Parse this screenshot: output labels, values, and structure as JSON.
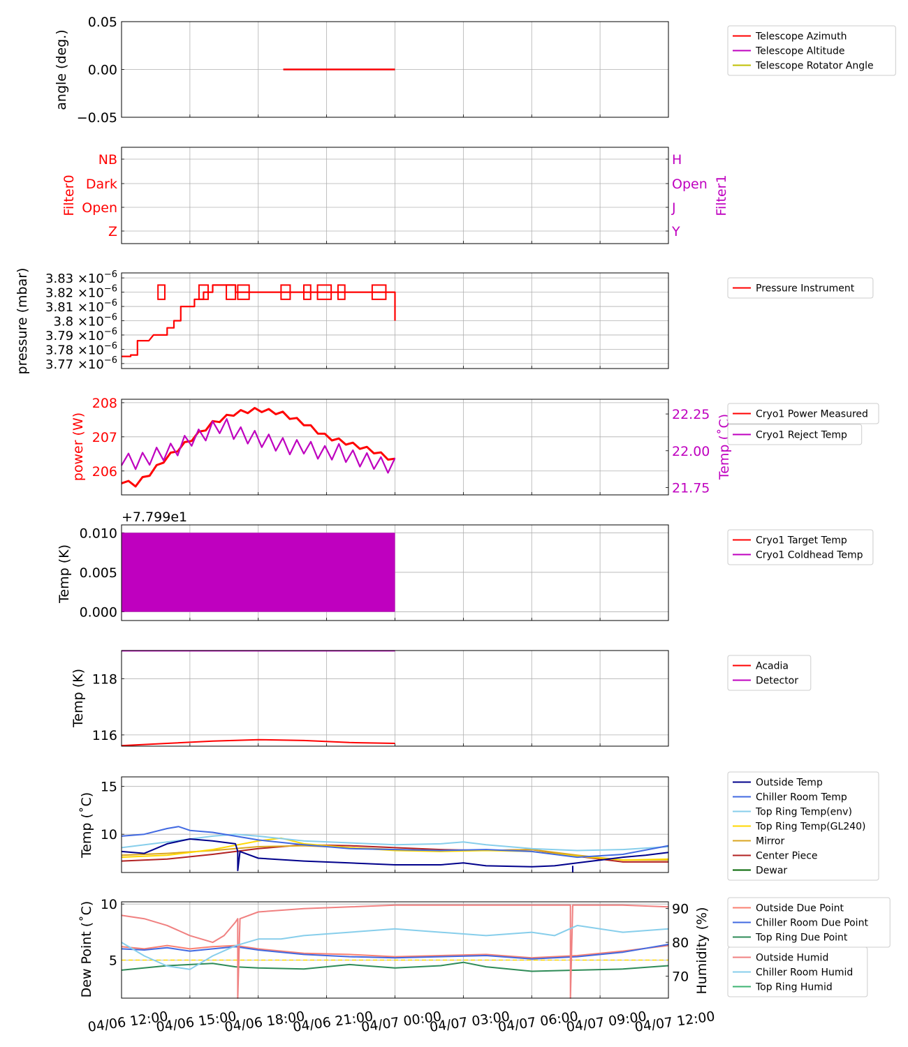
{
  "x_time_ticks": [
    "04/06 12:00",
    "04/06 15:00",
    "04/06 18:00",
    "04/06 21:00",
    "04/07 00:00",
    "04/07 03:00",
    "04/07 06:00",
    "04/07 09:00",
    "04/07 12:00"
  ],
  "chart_data": [
    {
      "type": "line",
      "ylabel": "angle (deg.)",
      "ylim": [
        -0.05,
        0.05
      ],
      "yticks": [
        "0.05",
        "0.00",
        "−0.05"
      ],
      "x_range_hours": [
        0,
        24
      ],
      "series": [
        {
          "name": "Telescope Azimuth",
          "color": "#ff0000",
          "x": [
            7.1,
            12.0
          ],
          "values": [
            0,
            0
          ]
        },
        {
          "name": "Telescope Altitude",
          "color": "#bf00bf",
          "x": [
            7.1,
            12.0
          ],
          "values": [
            0,
            0
          ]
        },
        {
          "name": "Telescope Rotator Angle",
          "color": "#bfbf00",
          "x": [
            7.1,
            12.0
          ],
          "values": [
            0,
            0
          ]
        }
      ],
      "legend": "right"
    },
    {
      "type": "line",
      "ylabel_left": "Filter0",
      "ylabel_right": "Filter1",
      "left_ticks": [
        "NB",
        "Dark",
        "Open",
        "Z"
      ],
      "right_ticks": [
        "H",
        "Open",
        "J",
        "Y"
      ],
      "colors": {
        "left": "#ff0000",
        "right": "#bf00bf"
      }
    },
    {
      "type": "line",
      "ylabel": "pressure (mbar)",
      "yticks_mantissa": [
        "3.83",
        "3.82",
        "3.81",
        "3.8",
        "3.79",
        "3.78",
        "3.77"
      ],
      "ytick_unit": "×10",
      "ytick_exp": "−6",
      "ylim": [
        3.7665e-06,
        3.8335e-06
      ],
      "series": [
        {
          "name": "Pressure Instrument",
          "color": "#ff0000",
          "x": [
            0,
            0.4,
            0.4,
            0.7,
            0.7,
            1.2,
            1.2,
            1.4,
            1.4,
            2.0,
            2.0,
            2.3,
            2.3,
            2.6,
            2.6,
            3.2,
            3.2,
            3.6,
            3.6,
            4.0,
            4.0,
            5.0,
            5.0,
            12.0,
            12.0
          ],
          "values": [
            3.775e-06,
            3.775e-06,
            3.776e-06,
            3.776e-06,
            3.786e-06,
            3.786e-06,
            3.786e-06,
            3.79e-06,
            3.79e-06,
            3.79e-06,
            3.795e-06,
            3.795e-06,
            3.8e-06,
            3.8e-06,
            3.81e-06,
            3.81e-06,
            3.815e-06,
            3.815e-06,
            3.82e-06,
            3.82e-06,
            3.825e-06,
            3.825e-06,
            3.82e-06,
            3.82e-06,
            3.8e-06
          ]
        }
      ],
      "legend": "right"
    },
    {
      "type": "line",
      "ylabel_left": "power (W)",
      "ylabel_right": "Temp (˚C)",
      "yticks_left": [
        "208",
        "207",
        "206"
      ],
      "yticks_right": [
        "22.25",
        "22.00",
        "21.75"
      ],
      "ylim_left": [
        205.3,
        208.1
      ],
      "ylim_right": [
        21.7,
        22.35
      ],
      "series": [
        {
          "name": "Cryo1 Power Measured",
          "color": "#ff0000",
          "axis": "left",
          "x": [
            0,
            0.6,
            1.2,
            2.0,
            3.0,
            4.0,
            5.0,
            6.0,
            7.0,
            8.0,
            9.0,
            10.0,
            11.0,
            12.0
          ],
          "values": [
            205.7,
            205.6,
            205.9,
            206.4,
            206.9,
            207.4,
            207.7,
            207.8,
            207.7,
            207.4,
            207.0,
            206.8,
            206.6,
            206.3
          ]
        },
        {
          "name": "Cryo1 Reject Temp",
          "color": "#bf00bf",
          "axis": "right",
          "x": [
            0,
            0.5,
            1.0,
            1.5,
            2.0,
            2.5,
            3.0,
            3.5,
            4.0,
            4.5,
            5.0,
            5.5,
            6.0,
            6.5,
            7.0,
            7.5,
            8.0,
            8.5,
            9.0,
            9.5,
            10.0,
            10.5,
            11.0,
            11.5,
            12.0
          ],
          "values": [
            21.95,
            21.92,
            21.94,
            21.97,
            21.99,
            22.02,
            22.08,
            22.1,
            22.15,
            22.18,
            22.12,
            22.1,
            22.08,
            22.06,
            22.04,
            22.02,
            22.03,
            22.0,
            21.98,
            22.0,
            21.96,
            21.94,
            21.93,
            21.9,
            21.9
          ]
        }
      ],
      "legend": "right"
    },
    {
      "type": "area",
      "ylabel": "Temp (K)",
      "offset_label": "+7.799e1",
      "yticks": [
        "0.010",
        "0.005",
        "0.000"
      ],
      "ylim": [
        -0.0011,
        0.011
      ],
      "series": [
        {
          "name": "Cryo1 Target Temp",
          "color": "#ff0000",
          "x": [
            0,
            12
          ],
          "values": [
            0,
            0
          ]
        },
        {
          "name": "Cryo1 Coldhead Temp",
          "color": "#bf00bf",
          "x": [
            0,
            12
          ],
          "values_low": [
            0,
            0
          ],
          "values_high": [
            0.01,
            0.01
          ]
        }
      ],
      "legend": "right"
    },
    {
      "type": "line",
      "ylabel": "Temp (K)",
      "yticks": [
        "118",
        "116"
      ],
      "ylim": [
        115.6,
        119.0
      ],
      "series": [
        {
          "name": "Acadia",
          "color": "#ff0000",
          "x": [
            0,
            2,
            4,
            6,
            8,
            10,
            12
          ],
          "values": [
            115.62,
            115.7,
            115.78,
            115.83,
            115.8,
            115.73,
            115.7
          ]
        },
        {
          "name": "Detector",
          "color": "#bf00bf",
          "x": [
            0,
            12
          ],
          "values": [
            118.99,
            118.99
          ]
        }
      ],
      "legend": "right"
    },
    {
      "type": "line",
      "ylabel": "Temp (˚C)",
      "yticks": [
        "15",
        "10"
      ],
      "ylim": [
        6.0,
        16.0
      ],
      "series": [
        {
          "name": "Outside Temp",
          "color": "#00008b",
          "x": [
            0,
            1,
            2,
            3,
            4,
            5,
            5.1,
            5.1,
            5.2,
            6,
            8,
            10,
            12,
            14,
            15,
            16,
            18,
            19,
            20,
            21,
            22,
            23,
            24
          ],
          "values": [
            8.2,
            8.0,
            9.0,
            9.5,
            9.3,
            9.0,
            8.2,
            6.2,
            8.2,
            7.5,
            7.2,
            7.0,
            6.8,
            6.8,
            7.0,
            6.7,
            6.6,
            6.7,
            7.0,
            7.3,
            7.6,
            7.8,
            8.1
          ]
        },
        {
          "name": "Chiller Room Temp",
          "color": "#4169e1",
          "x": [
            0,
            1,
            2,
            2.5,
            3,
            4,
            5,
            6,
            8,
            10,
            12,
            14,
            16,
            18,
            20,
            22,
            24
          ],
          "values": [
            9.8,
            10.0,
            10.6,
            10.8,
            10.4,
            10.2,
            9.8,
            9.4,
            8.9,
            8.5,
            8.4,
            8.3,
            8.4,
            8.2,
            7.6,
            7.9,
            8.8
          ]
        },
        {
          "name": "Top Ring Temp(env)",
          "color": "#87ceeb",
          "x": [
            0,
            2,
            4,
            5,
            6,
            8,
            10,
            12,
            14,
            15,
            16,
            18,
            20,
            22,
            24
          ],
          "values": [
            8.6,
            9.2,
            9.8,
            10.0,
            9.8,
            9.3,
            9.1,
            8.9,
            9.0,
            9.2,
            8.9,
            8.5,
            8.3,
            8.4,
            8.7
          ]
        },
        {
          "name": "Top Ring Temp(GL240)",
          "color": "#ffd700",
          "x": [
            0,
            2,
            4,
            6,
            7,
            8,
            10,
            12,
            14,
            16,
            18,
            20,
            22,
            24
          ],
          "values": [
            7.6,
            7.8,
            8.4,
            9.3,
            9.6,
            9.0,
            8.6,
            8.3,
            8.2,
            8.3,
            8.2,
            7.7,
            7.3,
            7.4
          ]
        },
        {
          "name": "Mirror",
          "color": "#daa520",
          "x": [
            0,
            2,
            4,
            6,
            8,
            10,
            12,
            14,
            16,
            18,
            20,
            22,
            24
          ],
          "values": [
            7.8,
            8.0,
            8.3,
            8.7,
            8.8,
            8.6,
            8.4,
            8.3,
            8.3,
            8.4,
            7.8,
            7.3,
            7.3
          ]
        },
        {
          "name": "Center Piece",
          "color": "#b22222",
          "x": [
            0,
            2,
            4,
            6,
            8,
            10,
            12,
            14,
            16,
            18,
            20,
            22,
            24
          ],
          "values": [
            7.2,
            7.4,
            7.9,
            8.5,
            8.9,
            8.8,
            8.6,
            8.4,
            8.3,
            8.4,
            7.7,
            7.1,
            7.1
          ]
        },
        {
          "name": "Dewar",
          "color": "#006400",
          "x": [
            0,
            24
          ],
          "values": [
            null,
            null
          ]
        }
      ],
      "legend": "right"
    },
    {
      "type": "line",
      "ylabel_left": "Dew Point (˚C)",
      "ylabel_right": "Humidity (%)",
      "yticks_left": [
        "10",
        "5"
      ],
      "yticks_right": [
        "90",
        "80",
        "70"
      ],
      "ylim_left": [
        1.6,
        10.2
      ],
      "ylim_right": [
        63.5,
        92.0
      ],
      "series": [
        {
          "name": "Outside Due Point",
          "color": "#fa8072",
          "axis": "left",
          "x": [
            0,
            1,
            2,
            3,
            4,
            5,
            6,
            8,
            10,
            12,
            14,
            16,
            18,
            20,
            22,
            24
          ],
          "values": [
            6.2,
            6.0,
            6.3,
            6.0,
            6.2,
            6.3,
            6.0,
            5.6,
            5.5,
            5.3,
            5.4,
            5.5,
            5.2,
            5.4,
            5.8,
            6.3
          ]
        },
        {
          "name": "Chiller Room Due Point",
          "color": "#4169e1",
          "axis": "left",
          "x": [
            0,
            1,
            2,
            3,
            4,
            5,
            6,
            8,
            10,
            12,
            14,
            16,
            18,
            20,
            22,
            24
          ],
          "values": [
            6.0,
            5.9,
            6.1,
            5.8,
            6.0,
            6.2,
            5.9,
            5.5,
            5.3,
            5.2,
            5.3,
            5.4,
            5.1,
            5.3,
            5.7,
            6.4
          ]
        },
        {
          "name": "Top Ring Due Point",
          "color": "#2e8b57",
          "axis": "left",
          "x": [
            0,
            2,
            4,
            5,
            6,
            8,
            10,
            12,
            14,
            15,
            16,
            18,
            20,
            22,
            24
          ],
          "values": [
            4.1,
            4.5,
            4.7,
            4.4,
            4.3,
            4.2,
            4.6,
            4.3,
            4.5,
            4.8,
            4.4,
            4.0,
            4.1,
            4.2,
            4.5
          ]
        },
        {
          "name": "Outside Humid",
          "color": "#f08080",
          "axis": "right",
          "x": [
            0,
            1,
            2,
            3,
            4,
            4.5,
            5,
            5.1,
            5.1,
            5.2,
            6,
            8,
            10,
            12,
            14,
            16,
            18,
            19.7,
            19.7,
            19.8,
            22,
            24
          ],
          "values": [
            88,
            87,
            85,
            82,
            80,
            82,
            86,
            87,
            63.5,
            87,
            89,
            90,
            90.5,
            91,
            91,
            91,
            91,
            91,
            63.5,
            91,
            91,
            90.5
          ]
        },
        {
          "name": "Chiller Room Humid",
          "color": "#87ceeb",
          "axis": "right",
          "x": [
            0,
            1,
            2,
            3,
            3.5,
            4,
            5,
            6,
            7,
            8,
            10,
            12,
            14,
            16,
            18,
            19,
            20,
            22,
            24
          ],
          "values": [
            80,
            76,
            73,
            72,
            74,
            76,
            79,
            81,
            81,
            82,
            83,
            84,
            83,
            82,
            83,
            82,
            85,
            83,
            84
          ]
        },
        {
          "name": "Top Ring Humid",
          "color": "#3cb371",
          "axis": "right",
          "x": [
            0,
            24
          ],
          "values": [
            null,
            null
          ]
        }
      ],
      "reference_line": {
        "axis": "left",
        "value": 5.0,
        "color": "#ffd700"
      },
      "legend": "right"
    }
  ],
  "legends": [
    {
      "panel": 0,
      "items": [
        "Telescope Azimuth",
        "Telescope Altitude",
        "Telescope Rotator Angle"
      ]
    },
    {
      "panel": 2,
      "items": [
        "Pressure Instrument"
      ]
    },
    {
      "panel": 3,
      "items": [
        "Cryo1 Power Measured"
      ]
    },
    {
      "panel": 3,
      "items": [
        "Cryo1 Reject Temp"
      ]
    },
    {
      "panel": 4,
      "items": [
        "Cryo1 Target Temp",
        "Cryo1 Coldhead Temp"
      ]
    },
    {
      "panel": 5,
      "items": [
        "Acadia",
        "Detector"
      ]
    },
    {
      "panel": 6,
      "items": [
        "Outside Temp",
        "Chiller Room Temp",
        "Top Ring Temp(env)",
        "Top Ring Temp(GL240)",
        "Mirror",
        "Center Piece",
        "Dewar"
      ]
    },
    {
      "panel": 7,
      "items": [
        "Outside Due Point",
        "Chiller Room Due Point",
        "Top Ring Due Point"
      ]
    },
    {
      "panel": 7,
      "items": [
        "Outside Humid",
        "Chiller Room Humid",
        "Top Ring Humid"
      ]
    }
  ]
}
